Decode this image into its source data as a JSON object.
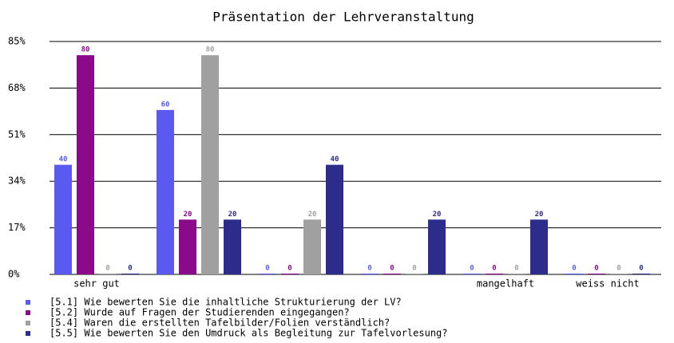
{
  "chart_data": {
    "type": "bar",
    "title": "Präsentation der Lehrveranstaltung",
    "categories": [
      "sehr gut",
      null,
      null,
      null,
      "mangelhaft",
      "weiss nicht"
    ],
    "series": [
      {
        "name": "[5.1] Wie bewerten Sie die inhaltliche Strukturierung der LV?",
        "color": "#5a5af0",
        "values": [
          40,
          60,
          0,
          0,
          0,
          0
        ]
      },
      {
        "name": "[5.2] Wurde auf Fragen der Studierenden eingegangen?",
        "color": "#8b0a8b",
        "values": [
          80,
          20,
          0,
          0,
          0,
          0
        ]
      },
      {
        "name": "[5.4] Waren die erstellten Tafelbilder/Folien verständlich?",
        "color": "#a0a0a0",
        "values": [
          0,
          80,
          20,
          0,
          0,
          0
        ]
      },
      {
        "name": "[5.5] Wie bewerten Sie den Umdruck als Begleitung zur Tafelvorlesung?",
        "color": "#2c2c8c",
        "values": [
          0,
          20,
          40,
          20,
          20,
          0
        ]
      }
    ],
    "ylim": [
      0,
      85
    ],
    "yticks": [
      {
        "value": 0,
        "label": "0%"
      },
      {
        "value": 17,
        "label": "17%"
      },
      {
        "value": 34,
        "label": "34%"
      },
      {
        "value": 51,
        "label": "51%"
      },
      {
        "value": 68,
        "label": "68%"
      },
      {
        "value": 85,
        "label": "85%"
      }
    ],
    "grid": true
  }
}
